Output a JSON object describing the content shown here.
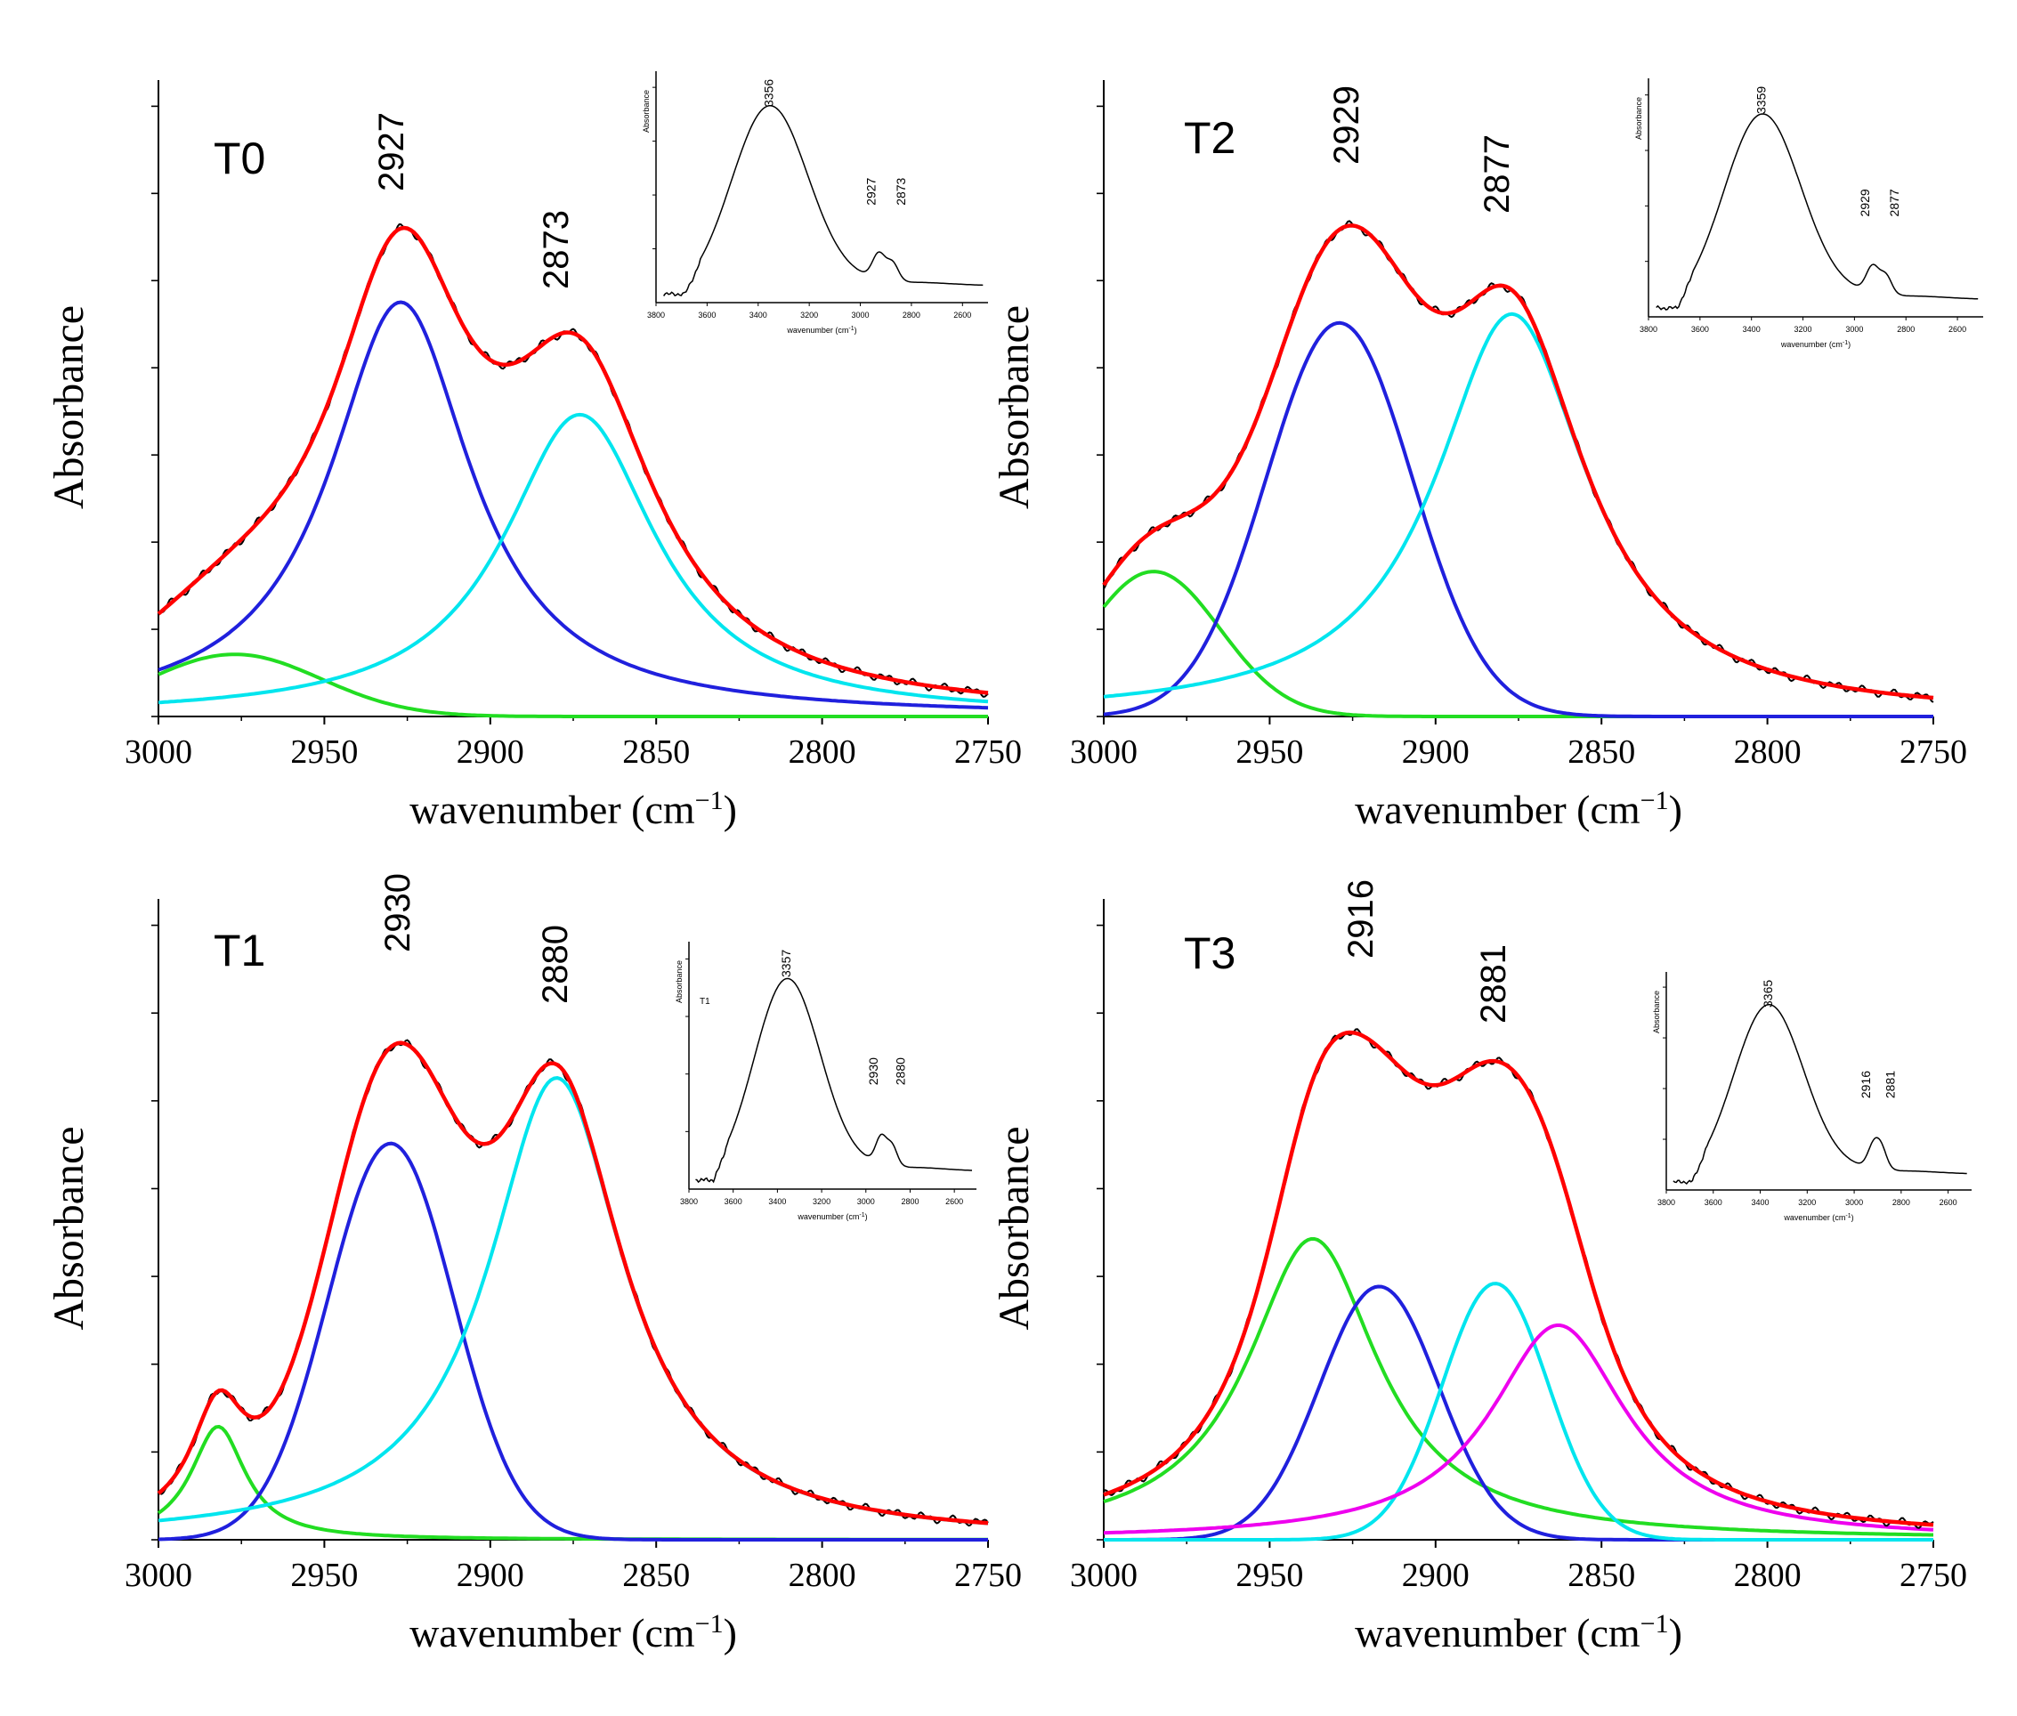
{
  "figure": {
    "ylabel": "Absorbance",
    "xlabel_main": "wavenumber (cm",
    "xlabel_sup": "−1",
    "xlabel_close": ")",
    "inset_ylabel": "Absorbance",
    "inset_xlabel": "wavenumber (cm",
    "inset_xlabel_sup": "-1",
    "inset_xlabel_close": ")",
    "colors": {
      "raw": "#000000",
      "fit": "#ff0000",
      "green": "#22dd22",
      "blue": "#2020dd",
      "cyan": "#00e5ee",
      "magenta": "#ee00ee",
      "axis": "#000000"
    }
  },
  "chart_data": [
    {
      "id": "T0",
      "type": "line",
      "title": "T0",
      "xlim": [
        3000,
        2750
      ],
      "xticks": [
        "3000",
        "2950",
        "2900",
        "2850",
        "2800",
        "2750"
      ],
      "ylim": [
        0,
        1
      ],
      "ylabel": "Absorbance",
      "peak_labels": [
        "2927",
        "2873"
      ],
      "components": [
        {
          "name": "green",
          "color": "#22dd22",
          "center": 2977,
          "amp": 0.105,
          "width": 26,
          "shape": "gauss"
        },
        {
          "name": "blue",
          "color": "#2020dd",
          "center": 2927,
          "amp": 0.7,
          "width": 26,
          "shape": "lorentz"
        },
        {
          "name": "cyan",
          "color": "#00e5ee",
          "center": 2873,
          "amp": 0.51,
          "width": 28,
          "shape": "lorentz"
        }
      ],
      "inset": {
        "xlim": [
          3800,
          2500
        ],
        "xticks": [
          "3800",
          "3600",
          "3400",
          "3200",
          "3000",
          "2800",
          "2600"
        ],
        "peak_labels": [
          "3356",
          "2927",
          "2873"
        ],
        "peaks": [
          3356,
          2927,
          2873
        ]
      }
    },
    {
      "id": "T2",
      "type": "line",
      "title": "T2",
      "xlim": [
        3000,
        2750
      ],
      "xticks": [
        "3000",
        "2950",
        "2900",
        "2850",
        "2800",
        "2750"
      ],
      "ylim": [
        0,
        1
      ],
      "ylabel": "Absorbance",
      "peak_labels": [
        "2929",
        "2877"
      ],
      "components": [
        {
          "name": "green",
          "color": "#22dd22",
          "center": 2985,
          "amp": 0.245,
          "width": 20,
          "shape": "gauss"
        },
        {
          "name": "blue",
          "color": "#2020dd",
          "center": 2929,
          "amp": 0.665,
          "width": 22,
          "shape": "gauss"
        },
        {
          "name": "cyan",
          "color": "#00e5ee",
          "center": 2877,
          "amp": 0.68,
          "width": 28,
          "shape": "lorentz"
        }
      ],
      "inset": {
        "xlim": [
          3800,
          2500
        ],
        "xticks": [
          "3800",
          "3600",
          "3400",
          "3200",
          "3000",
          "2800",
          "2600"
        ],
        "peak_labels": [
          "3359",
          "2929",
          "2877"
        ],
        "peaks": [
          3359,
          2929,
          2877
        ]
      }
    },
    {
      "id": "T1",
      "type": "line",
      "title": "T1",
      "xlim": [
        3000,
        2750
      ],
      "xticks": [
        "3000",
        "2950",
        "2900",
        "2850",
        "2800",
        "2750"
      ],
      "ylim": [
        0,
        1
      ],
      "ylabel": "Absorbance",
      "peak_labels": [
        "2930",
        "2880"
      ],
      "components": [
        {
          "name": "green",
          "color": "#22dd22",
          "center": 2982,
          "amp": 0.19,
          "width": 10,
          "shape": "lorentz"
        },
        {
          "name": "blue",
          "color": "#2020dd",
          "center": 2930,
          "amp": 0.665,
          "width": 19,
          "shape": "gauss"
        },
        {
          "name": "cyan",
          "color": "#00e5ee",
          "center": 2880,
          "amp": 0.775,
          "width": 25,
          "shape": "lorentz"
        }
      ],
      "inset": {
        "xlim": [
          3800,
          2500
        ],
        "xticks": [
          "3800",
          "3600",
          "3400",
          "3200",
          "3000",
          "2800",
          "2600"
        ],
        "peak_labels": [
          "3357",
          "2930",
          "2880"
        ],
        "peaks": [
          3357,
          2930,
          2880
        ],
        "tag": "T1"
      }
    },
    {
      "id": "T3",
      "type": "line",
      "title": "T3",
      "xlim": [
        3000,
        2750
      ],
      "xticks": [
        "3000",
        "2950",
        "2900",
        "2850",
        "2800",
        "2750"
      ],
      "ylim": [
        0,
        1
      ],
      "ylabel": "Absorbance",
      "peak_labels": [
        "2916",
        "2881"
      ],
      "components": [
        {
          "name": "green",
          "color": "#22dd22",
          "center": 2937,
          "amp": 0.505,
          "width": 24,
          "shape": "lorentz"
        },
        {
          "name": "blue",
          "color": "#2020dd",
          "center": 2917,
          "amp": 0.425,
          "width": 18,
          "shape": "gauss"
        },
        {
          "name": "cyan",
          "color": "#00e5ee",
          "center": 2882,
          "amp": 0.43,
          "width": 16,
          "shape": "gauss"
        },
        {
          "name": "magenta",
          "color": "#ee00ee",
          "center": 2863,
          "amp": 0.36,
          "width": 25,
          "shape": "lorentz"
        }
      ],
      "inset": {
        "xlim": [
          3800,
          2500
        ],
        "xticks": [
          "3800",
          "3600",
          "3400",
          "3200",
          "3000",
          "2800",
          "2600"
        ],
        "peak_labels": [
          "3365",
          "2916",
          "2881"
        ],
        "peaks": [
          3365,
          2916,
          2881
        ]
      }
    }
  ]
}
